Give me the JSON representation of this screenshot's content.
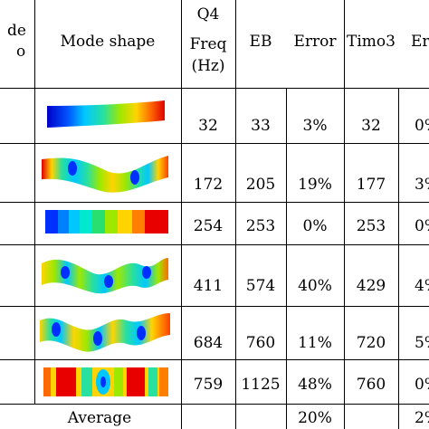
{
  "header": {
    "mode_no_line1": "de",
    "mode_no_line2": "o",
    "mode_shape": "Mode shape",
    "q4_line1": "Q4",
    "q4_line2": "Freq",
    "q4_line3": "(Hz)",
    "eb": "EB",
    "error1": "Error",
    "timo3": "Timo3",
    "error2": "Er"
  },
  "rows": [
    {
      "mode": "",
      "q4": "32",
      "eb": "33",
      "err1": "3%",
      "timo3": "32",
      "err2": "0%"
    },
    {
      "mode": "",
      "q4": "172",
      "eb": "205",
      "err1": "19%",
      "timo3": "177",
      "err2": "3%"
    },
    {
      "mode": "",
      "q4": "254",
      "eb": "253",
      "err1": "0%",
      "timo3": "253",
      "err2": "0%"
    },
    {
      "mode": "",
      "q4": "411",
      "eb": "574",
      "err1": "40%",
      "timo3": "429",
      "err2": "4%"
    },
    {
      "mode": "",
      "q4": "684",
      "eb": "760",
      "err1": "11%",
      "timo3": "720",
      "err2": "5%"
    },
    {
      "mode": "",
      "q4": "759",
      "eb": "1125",
      "err1": "48%",
      "timo3": "760",
      "err2": "0%"
    }
  ],
  "footer": {
    "label": "Average",
    "err1": "20%",
    "err2": "2%"
  }
}
